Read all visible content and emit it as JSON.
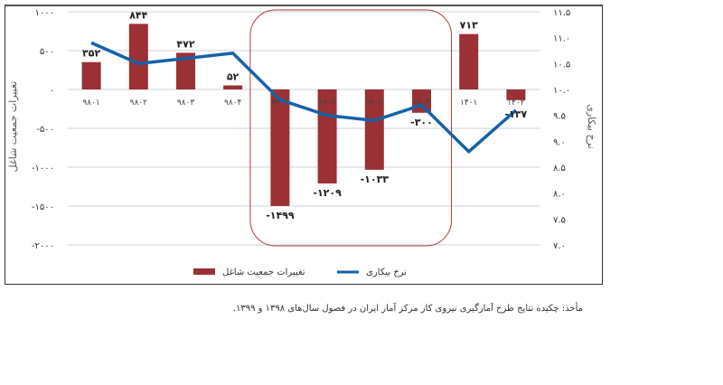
{
  "chart_data": {
    "type": "bar+line",
    "categories": [
      "۹۸۰۱",
      "۹۸۰۲",
      "۹۸۰۳",
      "۹۸۰۴",
      "۹۹۰۱",
      "۹۹۰۲",
      "۹۹۰۳",
      "۹۹۰۴",
      "۱۴۰۱",
      "۱۴۰۲"
    ],
    "series": [
      {
        "name": "تغییرات جمعیت شاغل",
        "type": "bar",
        "axis": "left",
        "color": "#9B3035",
        "values": [
          352,
          844,
          472,
          52,
          -1499,
          -1209,
          -1033,
          -300,
          713,
          -137
        ],
        "labels": [
          "۳۵۲",
          "۸۴۴",
          "۴۷۲",
          "۵۲",
          "-۱۴۹۹",
          "-۱۲۰۹",
          "-۱۰۳۳",
          "-۳۰۰",
          "۷۱۳",
          "-۱۳۷"
        ]
      },
      {
        "name": "نرخ بیکاری",
        "type": "line",
        "axis": "right",
        "color": "#1562A8",
        "values": [
          10.9,
          10.5,
          10.6,
          10.7,
          9.8,
          9.5,
          9.4,
          9.7,
          8.8,
          9.6
        ]
      }
    ],
    "ylabel_left": "تغییرات جمعیت شاغل",
    "ylabel_right": "نرخ بیکاری",
    "ylim_left": [
      -2000,
      1000
    ],
    "ylim_right": [
      7.0,
      11.5
    ],
    "yticks_left": [
      "۱۰۰۰",
      "۵۰۰",
      "۰",
      "-۵۰۰",
      "-۱۰۰۰",
      "-۱۵۰۰",
      "-۲۰۰۰"
    ],
    "yticks_right": [
      "۱۱.۵",
      "۱۱.۰",
      "۱۰.۵",
      "۱۰.۰",
      "۹.۵",
      "۹.۰",
      "۸.۵",
      "۸.۰",
      "۷.۵",
      "۷.۰"
    ],
    "grid": true,
    "legend": "bottom",
    "highlight": {
      "from": "۹۹۰۱",
      "to": "۹۹۰۴",
      "color": "#B03A3F"
    }
  },
  "source": "مأخذ: چکیده نتایج طرح آمارگیری نیروی کار مرکز آمار ایران در فصول سال‌های ۱۳۹۸ و ۱۳۹۹."
}
